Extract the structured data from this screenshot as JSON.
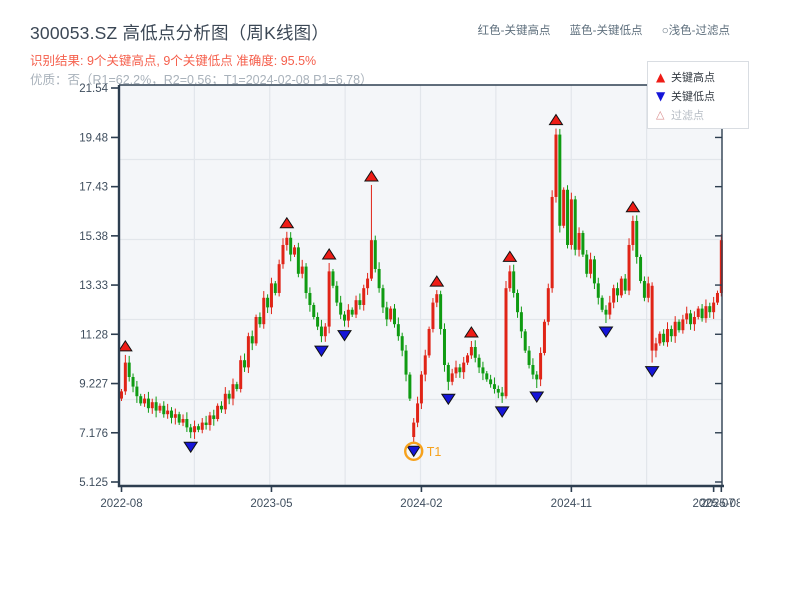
{
  "header": {
    "title": "300053.SZ 高低点分析图（周K线图）",
    "result_line": "识别结果: 9个关键高点, 9个关键低点  准确度: 95.5%",
    "quality_line": "优质：否（R1=62.2%，R2=0.56；T1=2024-02-08 P1=6.78）",
    "color_key": [
      "红色-关键高点",
      "蓝色-关键低点",
      "○浅色-过滤点"
    ]
  },
  "legend": {
    "items": [
      {
        "label": "关键高点",
        "swatch": "red-up-triangle"
      },
      {
        "label": "关键低点",
        "swatch": "blue-down-triangle"
      },
      {
        "label": "过滤点",
        "swatch": "filtered-up-triangle"
      }
    ]
  },
  "chart_data": {
    "type": "candlestick",
    "symbol": "300053.SZ",
    "interval": "weekly",
    "title": "300053.SZ 高低点分析图（周K线图）",
    "ylim": [
      5.125,
      21.54
    ],
    "grid": true,
    "y_ticks": [
      "21.54",
      "19.48",
      "17.43",
      "15.38",
      "13.33",
      "11.28",
      "9.227",
      "7.176",
      "5.125"
    ],
    "y_tick_values": [
      21.54,
      19.48,
      17.43,
      15.38,
      13.33,
      11.28,
      9.227,
      7.176,
      5.125
    ],
    "x_ticks": [
      {
        "label": "2022-08",
        "week": 0
      },
      {
        "label": "2023-05",
        "week": 39
      },
      {
        "label": "2024-02",
        "week": 78
      },
      {
        "label": "2024-11",
        "week": 117
      },
      {
        "label": "2025-07",
        "week": 154
      },
      {
        "label": "2025-08",
        "week": 156
      }
    ],
    "first_open": 8.6,
    "closes": [
      8.9,
      10.1,
      9.5,
      9.1,
      8.7,
      8.4,
      8.6,
      8.2,
      8.45,
      8.1,
      8.3,
      7.95,
      8.1,
      7.8,
      7.95,
      7.6,
      7.75,
      7.4,
      7.2,
      7.45,
      7.3,
      7.6,
      7.5,
      7.9,
      7.75,
      8.3,
      8.15,
      8.8,
      8.6,
      9.2,
      9.0,
      10.2,
      9.9,
      11.2,
      10.9,
      12.0,
      11.7,
      12.8,
      12.4,
      13.4,
      13.0,
      14.2,
      15.0,
      15.3,
      14.6,
      14.9,
      13.8,
      14.1,
      13.0,
      12.5,
      12.0,
      11.6,
      11.2,
      11.6,
      13.9,
      13.3,
      12.6,
      12.1,
      11.85,
      12.3,
      12.1,
      12.7,
      12.5,
      13.2,
      13.6,
      15.2,
      14.0,
      13.2,
      12.4,
      11.9,
      12.35,
      11.7,
      11.2,
      10.6,
      9.6,
      8.6,
      7.6,
      8.4,
      9.6,
      10.4,
      11.5,
      12.6,
      12.95,
      11.5,
      10.0,
      9.3,
      9.65,
      9.9,
      9.7,
      10.1,
      10.4,
      10.75,
      10.3,
      9.9,
      9.65,
      9.4,
      9.2,
      9.0,
      8.85,
      8.7,
      13.2,
      13.9,
      13.0,
      12.2,
      11.4,
      10.6,
      10.0,
      9.6,
      9.4,
      10.5,
      11.8,
      13.2,
      17.0,
      19.6,
      15.8,
      17.3,
      15.0,
      16.9,
      14.8,
      15.5,
      14.6,
      13.8,
      14.4,
      13.4,
      12.8,
      12.3,
      12.1,
      12.6,
      13.2,
      12.9,
      13.6,
      13.1,
      15.0,
      16.0,
      14.5,
      13.5,
      12.8,
      13.4,
      10.6,
      10.9,
      11.3,
      10.95,
      11.5,
      11.2,
      11.8,
      11.45,
      11.9,
      12.15,
      11.7,
      12.0,
      12.35,
      11.95,
      12.45,
      12.2,
      12.6,
      13.0,
      15.2
    ],
    "overrides": {
      "1": {
        "h": 10.42
      },
      "18": {
        "l": 6.95
      },
      "43": {
        "h": 15.55
      },
      "52": {
        "l": 10.95
      },
      "54": {
        "h": 14.25
      },
      "58": {
        "l": 11.6
      },
      "65": {
        "h": 17.5
      },
      "76": {
        "o": 7.0,
        "l": 6.78
      },
      "82": {
        "h": 13.12
      },
      "85": {
        "l": 8.95
      },
      "91": {
        "h": 11.0
      },
      "99": {
        "l": 8.42
      },
      "100": {
        "h": 13.5
      },
      "101": {
        "h": 14.15
      },
      "108": {
        "l": 9.04
      },
      "113": {
        "h": 19.85
      },
      "126": {
        "l": 11.75
      },
      "133": {
        "h": 16.22
      },
      "138": {
        "o": 13.3,
        "l": 10.1,
        "force": "up"
      },
      "156": {
        "h": 15.45
      }
    },
    "key_highs": [
      {
        "week": 1,
        "price": 10.42
      },
      {
        "week": 43,
        "price": 15.55
      },
      {
        "week": 54,
        "price": 14.25
      },
      {
        "week": 65,
        "price": 17.5
      },
      {
        "week": 82,
        "price": 13.12
      },
      {
        "week": 91,
        "price": 11.0
      },
      {
        "week": 101,
        "price": 14.15
      },
      {
        "week": 113,
        "price": 19.85
      },
      {
        "week": 133,
        "price": 16.22
      }
    ],
    "key_lows": [
      {
        "week": 18,
        "price": 6.95
      },
      {
        "week": 52,
        "price": 10.95
      },
      {
        "week": 58,
        "price": 11.6
      },
      {
        "week": 76,
        "price": 6.78
      },
      {
        "week": 85,
        "price": 8.95
      },
      {
        "week": 99,
        "price": 8.42
      },
      {
        "week": 108,
        "price": 9.04
      },
      {
        "week": 126,
        "price": 11.75
      },
      {
        "week": 138,
        "price": 10.1
      }
    ],
    "t1": {
      "week": 76,
      "price": 6.78,
      "label": "T1",
      "date": "2024-02-08"
    },
    "colors": {
      "up": "#e02417",
      "down": "#0f9b12",
      "key_high": "#ee1c16",
      "key_low": "#1515d8",
      "t1_ring": "#f6a21d",
      "grid": "#e2e6eb",
      "plot_bg": "#f4f6f9",
      "spine": "#2d3e50",
      "tick_text": "#3f4e5e",
      "filtered": "#d98c8c"
    }
  }
}
